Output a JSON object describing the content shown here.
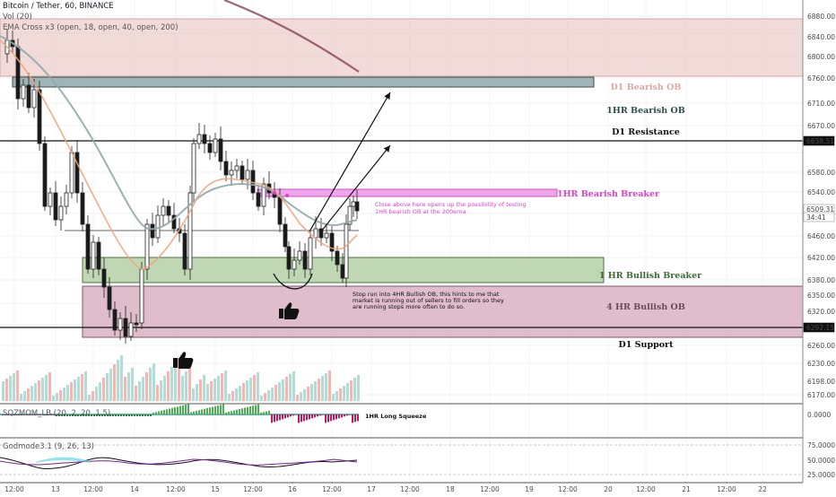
{
  "header": {
    "symbol": "Bitcoin / Tether, 60, BINANCE",
    "vol": "Vol (20)",
    "ema": "EMA Cross x3 (open, 18, open, 40, open, 200)"
  },
  "price_axis": {
    "labels": [
      "6880.00",
      "6840.00",
      "6800.00",
      "6760.00",
      "6710.00",
      "6670.00",
      "6580.00",
      "6540.00",
      "6500.00",
      "6460.00",
      "6420.00",
      "6380.00",
      "6350.00",
      "6320.00",
      "6260.00",
      "6230.00",
      "6198.00",
      "6170.00"
    ],
    "badges": [
      {
        "text": "6638.51",
        "style": "dark"
      },
      {
        "text": "6509.31",
        "style": "light"
      },
      {
        "text": "34:41",
        "style": "light"
      },
      {
        "text": "6292.15",
        "style": "dark"
      }
    ]
  },
  "time_axis": {
    "labels": [
      "12:00",
      "13",
      "12:00",
      "14",
      "12:00",
      "15",
      "12:00",
      "16",
      "12:00",
      "17",
      "12:00",
      "18",
      "12:00",
      "19",
      "12:00",
      "20",
      "12:00",
      "21",
      "12:00",
      "22"
    ]
  },
  "zones": [
    {
      "label": "D1 Bearish OB",
      "top": 6875,
      "bottom": 6765,
      "color": "#e8c8c4",
      "text_color": "#e0a7a2"
    },
    {
      "label": "1HR Bearish OB",
      "top": 6762,
      "bottom": 6748,
      "color": "#9fb4b7",
      "text_color": "#2f4f4f"
    },
    {
      "label": "1HR Bearish Breaker",
      "top": 6545,
      "bottom": 6532,
      "color": "#f0a4ec",
      "text_color": "#e040d0"
    },
    {
      "label": "1 HR Bullish Breaker",
      "top": 6420,
      "bottom": 6375,
      "color": "#b9d3ac",
      "text_color": "#3d6b35"
    },
    {
      "label": "4 HR Bullish OB",
      "top": 6365,
      "bottom": 6275,
      "color": "#d9b2c2",
      "text_color": "#6b4a5a"
    }
  ],
  "levels": [
    {
      "label": "D1 Resistance",
      "price": 6638.51
    },
    {
      "label": "D1 Support",
      "price": 6292.15
    }
  ],
  "notes": {
    "top": [
      "Close above here opens up the possibility of testing",
      "1HR bearish OB at the 200ema"
    ],
    "bottom": [
      "Stop run into 4HR Bullish OB, this hints to me that",
      "market is running out of sellers to fill orders so they",
      "are running stops more often to do so."
    ]
  },
  "indicators": {
    "squeeze": {
      "title": "SQZMOM_LB (20, 2, 20, 1.5)",
      "note": "1HR Long Squeeze",
      "axis": [
        "0.0000"
      ]
    },
    "godmode": {
      "title": "Godmode3.1 (9, 26, 13)",
      "axis": [
        "75.0000",
        "50.0000",
        "25.0000"
      ]
    }
  },
  "colors": {
    "bull": "#26a69a",
    "bear": "#ef5350",
    "ema200": "#8e4a5e",
    "ema40": "#8fa9ab",
    "ema18": "#f0a67a"
  },
  "chart_data": {
    "type": "candlestick",
    "title": "Bitcoin / Tether, 60, BINANCE",
    "ylim": [
      6150,
      6890
    ],
    "price_marks": {
      "D1 Resistance": 6638.51,
      "D1 Support": 6292.15,
      "last": 6509.31
    }
  }
}
